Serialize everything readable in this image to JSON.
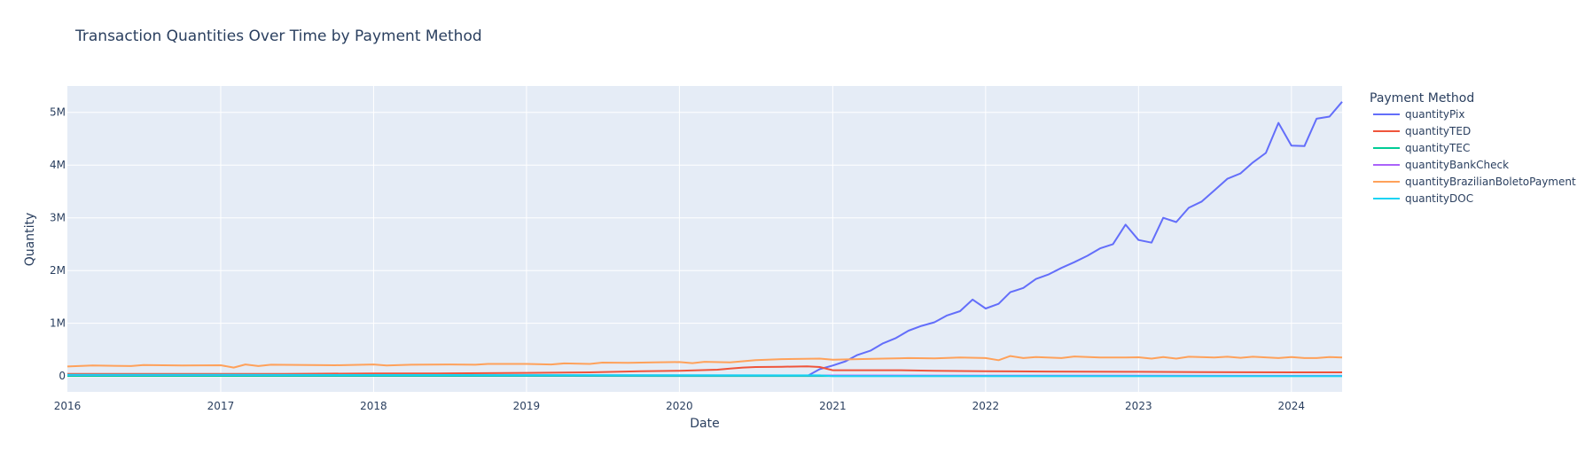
{
  "chart_data": {
    "type": "line",
    "title": "Transaction Quantities Over Time by Payment Method",
    "xlabel": "Date",
    "ylabel": "Quantity",
    "x_range": [
      "2016-01-01",
      "2024-05-01"
    ],
    "ylim": [
      -300000,
      5500000
    ],
    "x_ticks": [
      {
        "date": "2016-01-01",
        "label": "2016"
      },
      {
        "date": "2017-01-01",
        "label": "2017"
      },
      {
        "date": "2018-01-01",
        "label": "2018"
      },
      {
        "date": "2019-01-01",
        "label": "2019"
      },
      {
        "date": "2020-01-01",
        "label": "2020"
      },
      {
        "date": "2021-01-01",
        "label": "2021"
      },
      {
        "date": "2022-01-01",
        "label": "2022"
      },
      {
        "date": "2023-01-01",
        "label": "2023"
      },
      {
        "date": "2024-01-01",
        "label": "2024"
      }
    ],
    "y_ticks": [
      {
        "value": 0,
        "label": "0"
      },
      {
        "value": 1000000,
        "label": "1M"
      },
      {
        "value": 2000000,
        "label": "2M"
      },
      {
        "value": 3000000,
        "label": "3M"
      },
      {
        "value": 4000000,
        "label": "4M"
      },
      {
        "value": 5000000,
        "label": "5M"
      }
    ],
    "grid": true,
    "legend": {
      "title": "Payment Method",
      "position": "top-right, outside plot"
    },
    "series": [
      {
        "name": "quantityPix",
        "color": "#636efa",
        "points": [
          [
            "2020-11-01",
            0
          ],
          [
            "2020-12-01",
            130000
          ],
          [
            "2021-01-01",
            200000
          ],
          [
            "2021-02-01",
            280000
          ],
          [
            "2021-03-01",
            400000
          ],
          [
            "2021-04-01",
            480000
          ],
          [
            "2021-05-01",
            620000
          ],
          [
            "2021-06-01",
            720000
          ],
          [
            "2021-07-01",
            860000
          ],
          [
            "2021-08-01",
            950000
          ],
          [
            "2021-09-01",
            1020000
          ],
          [
            "2021-10-01",
            1150000
          ],
          [
            "2021-11-01",
            1230000
          ],
          [
            "2021-12-01",
            1450000
          ],
          [
            "2022-01-01",
            1280000
          ],
          [
            "2022-02-01",
            1370000
          ],
          [
            "2022-03-01",
            1590000
          ],
          [
            "2022-04-01",
            1670000
          ],
          [
            "2022-05-01",
            1840000
          ],
          [
            "2022-06-01",
            1930000
          ],
          [
            "2022-07-01",
            2050000
          ],
          [
            "2022-08-01",
            2160000
          ],
          [
            "2022-09-01",
            2280000
          ],
          [
            "2022-10-01",
            2420000
          ],
          [
            "2022-11-01",
            2500000
          ],
          [
            "2022-12-01",
            2870000
          ],
          [
            "2023-01-01",
            2580000
          ],
          [
            "2023-02-01",
            2530000
          ],
          [
            "2023-03-01",
            3000000
          ],
          [
            "2023-04-01",
            2920000
          ],
          [
            "2023-05-01",
            3190000
          ],
          [
            "2023-06-01",
            3310000
          ],
          [
            "2023-07-01",
            3520000
          ],
          [
            "2023-08-01",
            3740000
          ],
          [
            "2023-09-01",
            3840000
          ],
          [
            "2023-10-01",
            4050000
          ],
          [
            "2023-11-01",
            4230000
          ],
          [
            "2023-12-01",
            4800000
          ],
          [
            "2024-01-01",
            4370000
          ],
          [
            "2024-02-01",
            4360000
          ],
          [
            "2024-03-01",
            4880000
          ],
          [
            "2024-04-01",
            4920000
          ],
          [
            "2024-05-01",
            5200000
          ]
        ]
      },
      {
        "name": "quantityTED",
        "color": "#ef553b",
        "points": [
          [
            "2016-01-01",
            40000
          ],
          [
            "2017-01-01",
            40000
          ],
          [
            "2017-06-01",
            40000
          ],
          [
            "2018-01-01",
            50000
          ],
          [
            "2018-06-01",
            50000
          ],
          [
            "2019-01-01",
            60000
          ],
          [
            "2019-06-01",
            70000
          ],
          [
            "2019-10-01",
            90000
          ],
          [
            "2020-01-01",
            100000
          ],
          [
            "2020-04-01",
            120000
          ],
          [
            "2020-05-01",
            140000
          ],
          [
            "2020-06-01",
            160000
          ],
          [
            "2020-07-01",
            170000
          ],
          [
            "2020-09-01",
            175000
          ],
          [
            "2020-11-01",
            185000
          ],
          [
            "2020-12-01",
            170000
          ],
          [
            "2021-01-01",
            110000
          ],
          [
            "2021-03-01",
            110000
          ],
          [
            "2021-06-01",
            110000
          ],
          [
            "2021-09-01",
            100000
          ],
          [
            "2022-01-01",
            90000
          ],
          [
            "2022-06-01",
            85000
          ],
          [
            "2023-01-01",
            80000
          ],
          [
            "2023-06-01",
            75000
          ],
          [
            "2024-01-01",
            70000
          ],
          [
            "2024-05-01",
            70000
          ]
        ]
      },
      {
        "name": "quantityTEC",
        "color": "#00cc96",
        "points": [
          [
            "2016-01-01",
            2000
          ],
          [
            "2018-01-01",
            2000
          ],
          [
            "2020-01-01",
            1500
          ],
          [
            "2022-01-01",
            1000
          ],
          [
            "2024-05-01",
            1000
          ]
        ]
      },
      {
        "name": "quantityBankCheck",
        "color": "#ab63fa",
        "points": [
          [
            "2016-01-01",
            20000
          ],
          [
            "2018-01-01",
            17000
          ],
          [
            "2020-01-01",
            12000
          ],
          [
            "2022-01-01",
            8000
          ],
          [
            "2024-05-01",
            5000
          ]
        ]
      },
      {
        "name": "quantityBrazilianBoletoPayment",
        "color": "#ffa15a",
        "points": [
          [
            "2016-01-01",
            180000
          ],
          [
            "2016-03-01",
            200000
          ],
          [
            "2016-06-01",
            190000
          ],
          [
            "2016-07-01",
            210000
          ],
          [
            "2016-10-01",
            200000
          ],
          [
            "2017-01-01",
            205000
          ],
          [
            "2017-02-01",
            160000
          ],
          [
            "2017-03-01",
            220000
          ],
          [
            "2017-04-01",
            190000
          ],
          [
            "2017-05-01",
            215000
          ],
          [
            "2017-08-01",
            210000
          ],
          [
            "2017-10-01",
            205000
          ],
          [
            "2018-01-01",
            220000
          ],
          [
            "2018-02-01",
            200000
          ],
          [
            "2018-04-01",
            215000
          ],
          [
            "2018-07-01",
            220000
          ],
          [
            "2018-09-01",
            215000
          ],
          [
            "2018-10-01",
            230000
          ],
          [
            "2019-01-01",
            230000
          ],
          [
            "2019-03-01",
            220000
          ],
          [
            "2019-04-01",
            240000
          ],
          [
            "2019-06-01",
            230000
          ],
          [
            "2019-07-01",
            255000
          ],
          [
            "2019-09-01",
            250000
          ],
          [
            "2019-11-01",
            260000
          ],
          [
            "2020-01-01",
            265000
          ],
          [
            "2020-02-01",
            245000
          ],
          [
            "2020-03-01",
            270000
          ],
          [
            "2020-05-01",
            260000
          ],
          [
            "2020-07-01",
            300000
          ],
          [
            "2020-09-01",
            320000
          ],
          [
            "2020-12-01",
            330000
          ],
          [
            "2021-01-01",
            310000
          ],
          [
            "2021-03-01",
            320000
          ],
          [
            "2021-05-01",
            330000
          ],
          [
            "2021-07-01",
            340000
          ],
          [
            "2021-09-01",
            335000
          ],
          [
            "2021-11-01",
            350000
          ],
          [
            "2022-01-01",
            340000
          ],
          [
            "2022-02-01",
            300000
          ],
          [
            "2022-03-01",
            380000
          ],
          [
            "2022-04-01",
            340000
          ],
          [
            "2022-05-01",
            360000
          ],
          [
            "2022-07-01",
            340000
          ],
          [
            "2022-08-01",
            370000
          ],
          [
            "2022-10-01",
            350000
          ],
          [
            "2022-12-01",
            350000
          ],
          [
            "2023-01-01",
            355000
          ],
          [
            "2023-02-01",
            330000
          ],
          [
            "2023-03-01",
            360000
          ],
          [
            "2023-04-01",
            330000
          ],
          [
            "2023-05-01",
            365000
          ],
          [
            "2023-07-01",
            350000
          ],
          [
            "2023-08-01",
            365000
          ],
          [
            "2023-09-01",
            345000
          ],
          [
            "2023-10-01",
            365000
          ],
          [
            "2023-12-01",
            340000
          ],
          [
            "2024-01-01",
            360000
          ],
          [
            "2024-02-01",
            340000
          ],
          [
            "2024-03-01",
            340000
          ],
          [
            "2024-04-01",
            360000
          ],
          [
            "2024-05-01",
            350000
          ]
        ]
      },
      {
        "name": "quantityDOC",
        "color": "#19d3f3",
        "points": [
          [
            "2016-01-01",
            25000
          ],
          [
            "2017-01-01",
            22000
          ],
          [
            "2018-01-01",
            20000
          ],
          [
            "2019-01-01",
            17000
          ],
          [
            "2020-01-01",
            14000
          ],
          [
            "2020-12-01",
            12000
          ],
          [
            "2021-01-01",
            0
          ],
          [
            "2024-05-01",
            0
          ]
        ]
      }
    ]
  }
}
